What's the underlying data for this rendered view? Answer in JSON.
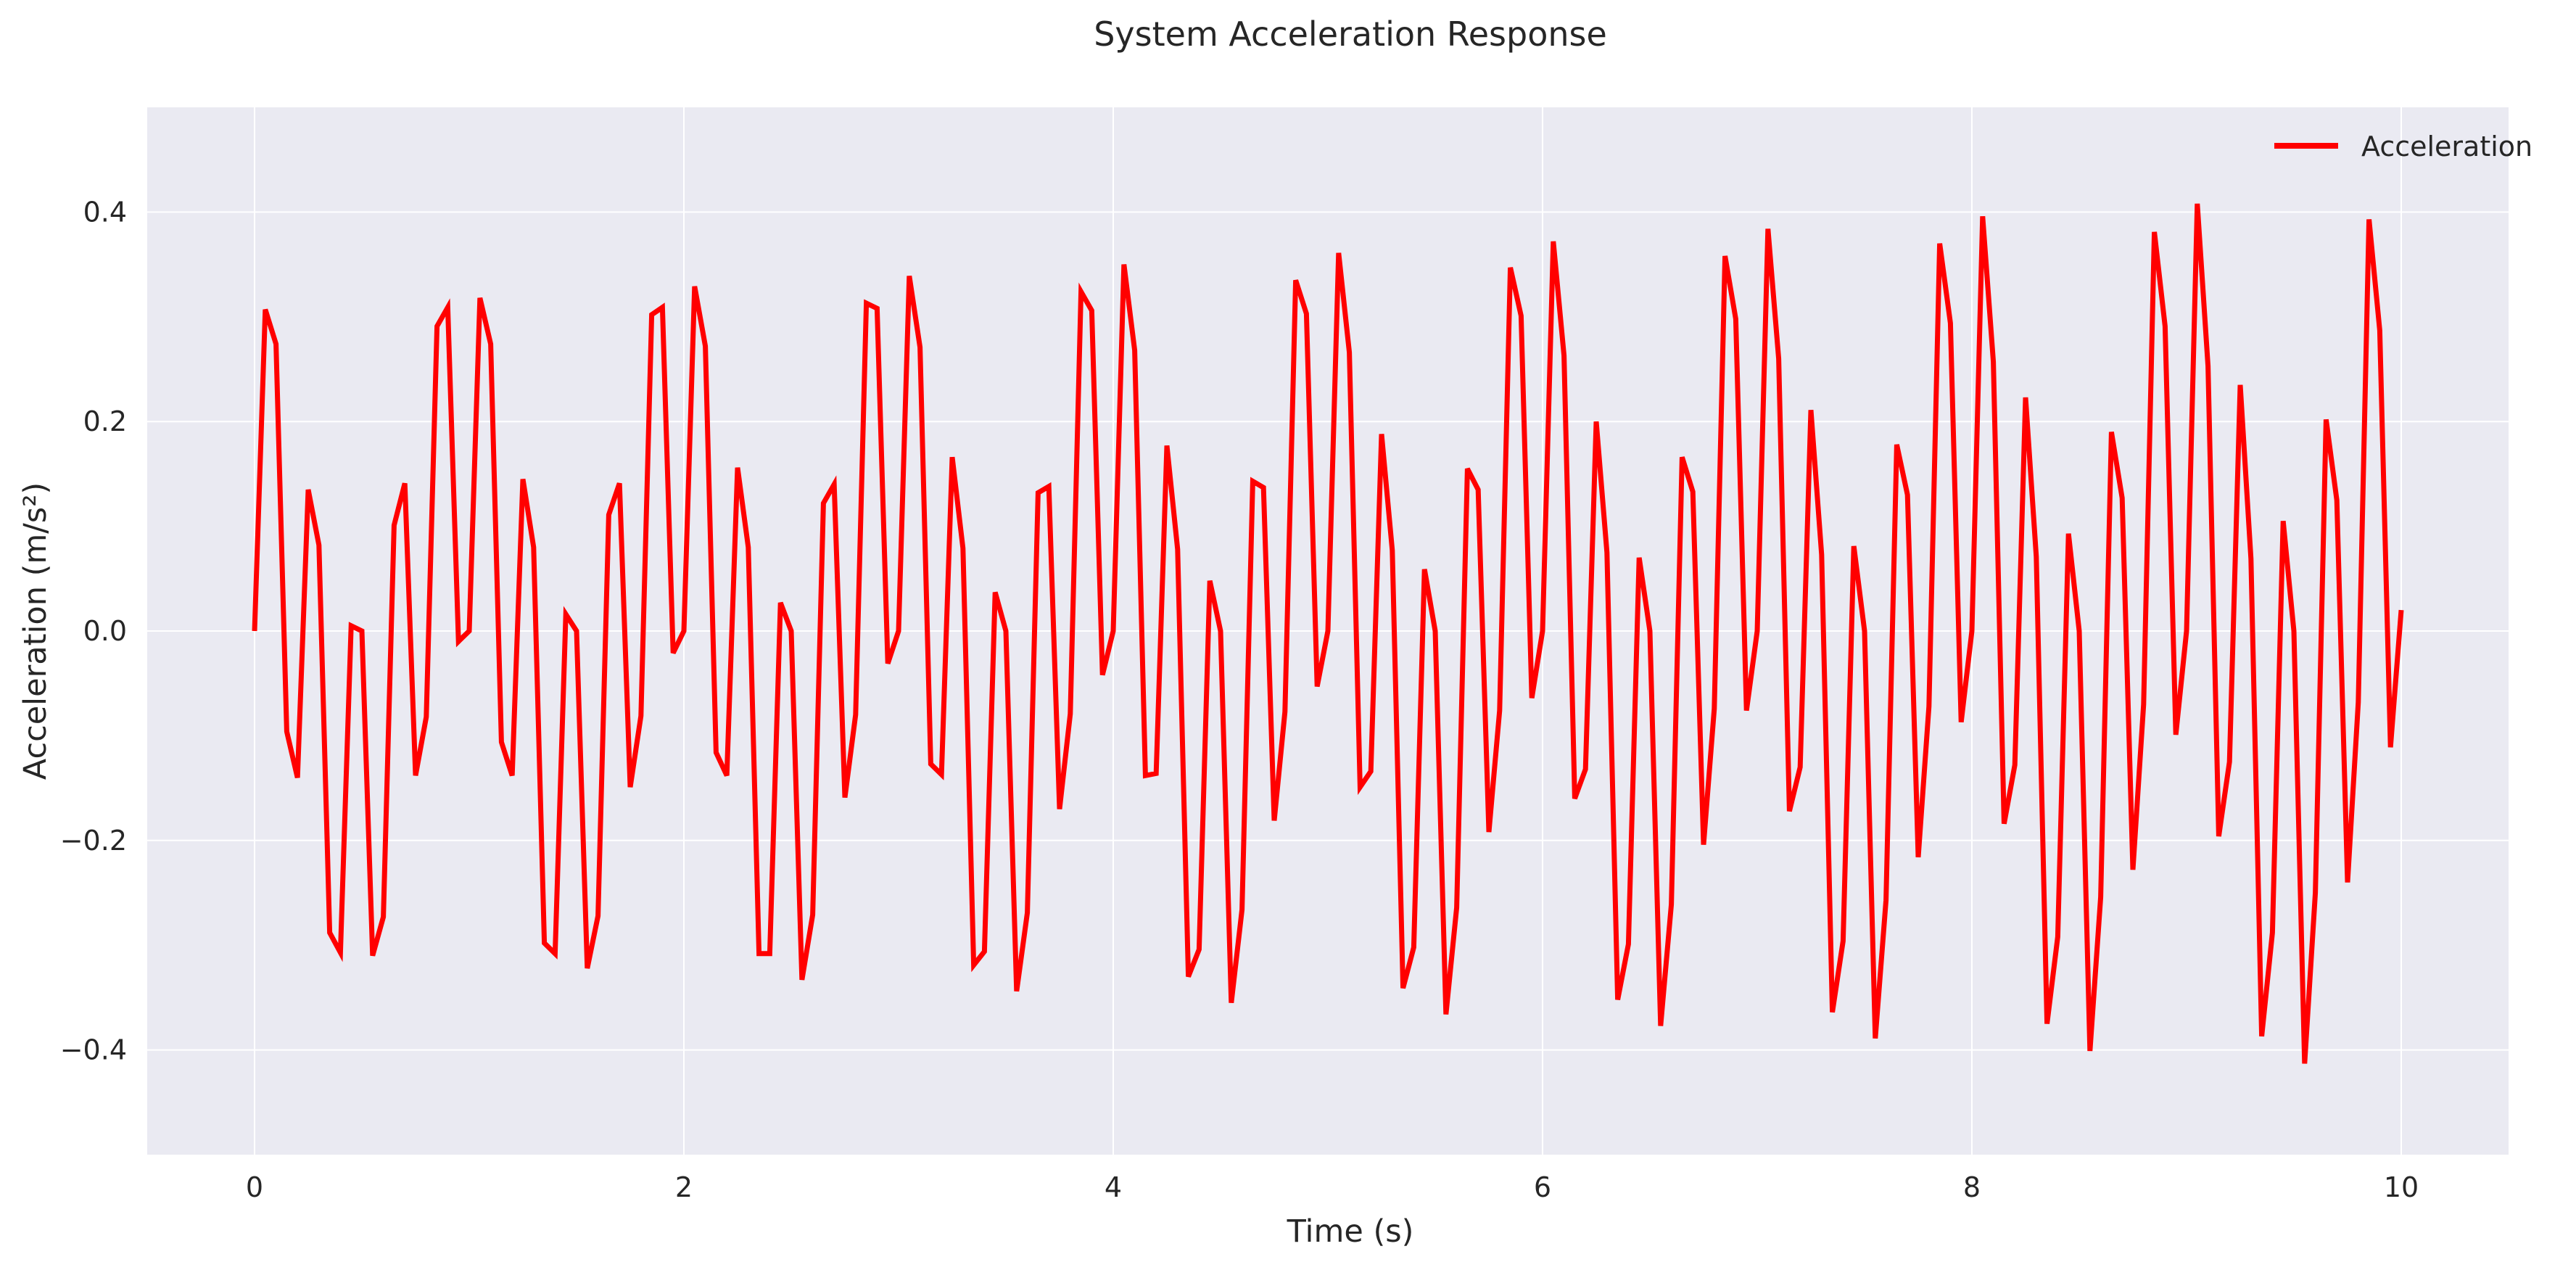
{
  "chart_data": {
    "type": "line",
    "title": "System Acceleration Response",
    "xlabel": "Time (s)",
    "ylabel": "Acceleration (m/s²)",
    "xlim": [
      -0.5,
      10.5
    ],
    "ylim": [
      -0.5,
      0.5
    ],
    "xticks": [
      0,
      2,
      4,
      6,
      8,
      10
    ],
    "xtick_labels": [
      "0",
      "2",
      "4",
      "6",
      "8",
      "10"
    ],
    "yticks": [
      -0.4,
      -0.2,
      0.0,
      0.2,
      0.4
    ],
    "ytick_labels": [
      "−0.4",
      "−0.2",
      "0.0",
      "0.2",
      "0.4"
    ],
    "grid": true,
    "legend_position": "top-right",
    "colors": {
      "plot_background": "#eaeaf2",
      "grid": "#ffffff",
      "series": "#ff0000"
    },
    "series": [
      {
        "name": "Acceleration",
        "color": "#ff0000",
        "x": [
          0.0,
          0.05,
          0.1,
          0.15,
          0.2,
          0.25,
          0.3,
          0.35,
          0.4,
          0.45,
          0.5,
          0.55,
          0.6,
          0.65,
          0.7,
          0.75,
          0.8,
          0.85,
          0.9,
          0.95,
          1.0,
          1.05,
          1.1,
          1.15,
          1.2,
          1.25,
          1.3,
          1.35,
          1.4,
          1.45,
          1.5,
          1.55,
          1.6,
          1.65,
          1.7,
          1.75,
          1.8,
          1.85,
          1.9,
          1.95,
          2.0,
          2.05,
          2.1,
          2.15,
          2.2,
          2.25,
          2.3,
          2.35,
          2.4,
          2.45,
          2.5,
          2.55,
          2.6,
          2.65,
          2.7,
          2.75,
          2.8,
          2.85,
          2.9,
          2.95,
          3.0,
          3.05,
          3.1,
          3.15,
          3.2,
          3.25,
          3.3,
          3.35,
          3.4,
          3.45,
          3.5,
          3.55,
          3.6,
          3.65,
          3.7,
          3.75,
          3.8,
          3.85,
          3.9,
          3.95,
          4.0,
          4.05,
          4.1,
          4.15,
          4.2,
          4.25,
          4.3,
          4.35,
          4.4,
          4.45,
          4.5,
          4.55,
          4.6,
          4.65,
          4.7,
          4.75,
          4.8,
          4.85,
          4.9,
          4.95,
          5.0,
          5.05,
          5.1,
          5.15,
          5.2,
          5.25,
          5.3,
          5.35,
          5.4,
          5.45,
          5.5,
          5.55,
          5.6,
          5.65,
          5.7,
          5.75,
          5.8,
          5.85,
          5.9,
          5.95,
          6.0,
          6.05,
          6.1,
          6.15,
          6.2,
          6.25,
          6.3,
          6.35,
          6.4,
          6.45,
          6.5,
          6.55,
          6.6,
          6.65,
          6.7,
          6.75,
          6.8,
          6.85,
          6.9,
          6.95,
          7.0,
          7.05,
          7.1,
          7.15,
          7.2,
          7.25,
          7.3,
          7.35,
          7.4,
          7.45,
          7.5,
          7.55,
          7.6,
          7.65,
          7.7,
          7.75,
          7.8,
          7.85,
          7.9,
          7.95,
          8.0,
          8.05,
          8.1,
          8.15,
          8.2,
          8.25,
          8.3,
          8.35,
          8.4,
          8.45,
          8.5,
          8.55,
          8.6,
          8.65,
          8.7,
          8.75,
          8.8,
          8.85,
          8.9,
          8.95,
          9.0,
          9.05,
          9.1,
          9.15,
          9.2,
          9.25,
          9.3,
          9.35,
          9.4,
          9.45,
          9.5,
          9.55,
          9.6,
          9.65,
          9.7,
          9.75,
          9.8,
          9.85,
          9.9,
          9.95,
          10.0
        ],
        "y": [
          0.0,
          0.307,
          0.274,
          -0.096,
          -0.14,
          0.135,
          0.082,
          -0.288,
          -0.307,
          0.005,
          0.0,
          -0.31,
          -0.273,
          0.101,
          0.141,
          -0.138,
          -0.082,
          0.291,
          0.309,
          -0.01,
          0.0,
          0.318,
          0.274,
          -0.106,
          -0.138,
          0.145,
          0.08,
          -0.298,
          -0.308,
          0.016,
          0.0,
          -0.322,
          -0.272,
          0.111,
          0.141,
          -0.149,
          -0.081,
          0.302,
          0.309,
          -0.021,
          0.0,
          0.329,
          0.272,
          -0.116,
          -0.138,
          0.156,
          0.08,
          -0.308,
          -0.308,
          0.027,
          0.0,
          -0.333,
          -0.271,
          0.122,
          0.14,
          -0.159,
          -0.08,
          0.313,
          0.308,
          -0.031,
          0.0,
          0.339,
          0.271,
          -0.127,
          -0.137,
          0.166,
          0.079,
          -0.319,
          -0.306,
          0.037,
          0.0,
          -0.344,
          -0.269,
          0.132,
          0.138,
          -0.17,
          -0.079,
          0.324,
          0.306,
          -0.042,
          0.0,
          0.35,
          0.268,
          -0.138,
          -0.136,
          0.177,
          0.078,
          -0.33,
          -0.304,
          0.048,
          0.0,
          -0.355,
          -0.266,
          0.143,
          0.137,
          -0.181,
          -0.077,
          0.335,
          0.303,
          -0.053,
          0.0,
          0.361,
          0.266,
          -0.149,
          -0.134,
          0.188,
          0.077,
          -0.341,
          -0.302,
          0.059,
          0.0,
          -0.366,
          -0.264,
          0.155,
          0.135,
          -0.192,
          -0.076,
          0.347,
          0.301,
          -0.064,
          0.0,
          0.372,
          0.263,
          -0.16,
          -0.132,
          0.2,
          0.075,
          -0.352,
          -0.299,
          0.07,
          0.0,
          -0.377,
          -0.261,
          0.166,
          0.133,
          -0.204,
          -0.074,
          0.358,
          0.298,
          -0.076,
          0.0,
          0.384,
          0.26,
          -0.172,
          -0.13,
          0.211,
          0.073,
          -0.364,
          -0.296,
          0.081,
          0.0,
          -0.389,
          -0.257,
          0.178,
          0.13,
          -0.216,
          -0.072,
          0.37,
          0.294,
          -0.087,
          0.0,
          0.396,
          0.257,
          -0.184,
          -0.128,
          0.223,
          0.071,
          -0.375,
          -0.292,
          0.093,
          0.0,
          -0.401,
          -0.254,
          0.19,
          0.127,
          -0.228,
          -0.07,
          0.381,
          0.291,
          -0.099,
          0.0,
          0.408,
          0.253,
          -0.196,
          -0.125,
          0.235,
          0.069,
          -0.387,
          -0.288,
          0.105,
          0.0,
          -0.413,
          -0.25,
          0.202,
          0.125,
          -0.24,
          -0.068,
          0.393,
          0.287,
          -0.111,
          0.02
        ]
      }
    ]
  }
}
